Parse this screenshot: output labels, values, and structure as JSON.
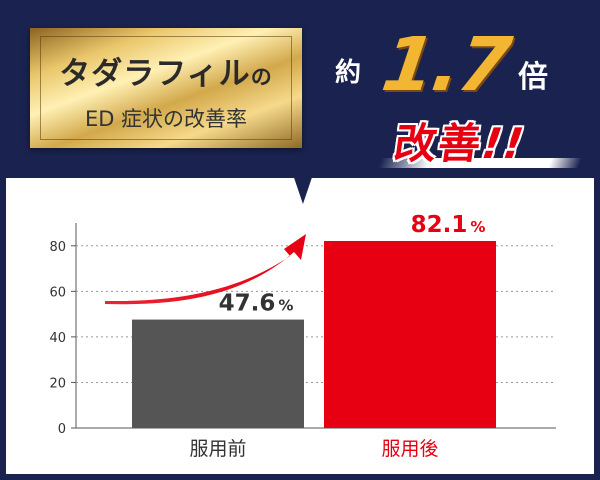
{
  "header": {
    "gold_title": "タダラフィル",
    "gold_title_suffix": "の",
    "gold_subtitle": "ED 症状の改善率",
    "tagline_prefix": "約",
    "tagline_number": "1.7",
    "tagline_suffix": "倍",
    "tagline_result": "改善",
    "tagline_exclaim": "!!"
  },
  "colors": {
    "navy_background": "#1a2350",
    "bar_before": "#555555",
    "bar_after": "#e60012",
    "accent_gold": "#f2b632",
    "accent_red": "#e60012"
  },
  "chart_data": {
    "type": "bar",
    "categories": [
      "服用前",
      "服用後"
    ],
    "values": [
      47.6,
      82.1
    ],
    "value_labels": [
      "47.6",
      "82.1"
    ],
    "value_unit": "%",
    "yticks": [
      "0",
      "20",
      "40",
      "60",
      "80"
    ],
    "ylim": [
      0,
      90
    ],
    "grid": true,
    "title": "",
    "xlabel": "",
    "ylabel": ""
  }
}
